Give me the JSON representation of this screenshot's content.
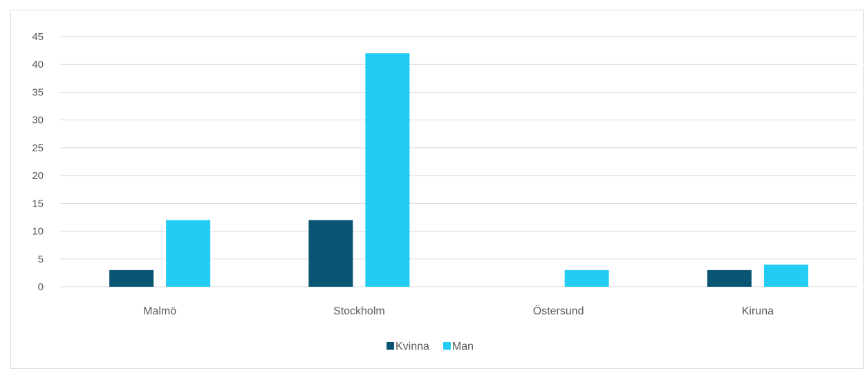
{
  "chart_data": {
    "type": "bar",
    "categories": [
      "Malmö",
      "Stockholm",
      "Östersund",
      "Kiruna"
    ],
    "series": [
      {
        "name": "Kvinna",
        "values": [
          3,
          12,
          0,
          3
        ],
        "color": "#0b5574"
      },
      {
        "name": "Man",
        "values": [
          12,
          42,
          3,
          4
        ],
        "color": "#22ccf2"
      }
    ],
    "ylim": [
      0,
      45
    ],
    "yticks": [
      0,
      5,
      10,
      15,
      20,
      25,
      30,
      35,
      40,
      45
    ],
    "grid": true,
    "legend_position": "bottom",
    "gridline_color": "#d9d9d9",
    "tick_label_color": "#595959"
  }
}
